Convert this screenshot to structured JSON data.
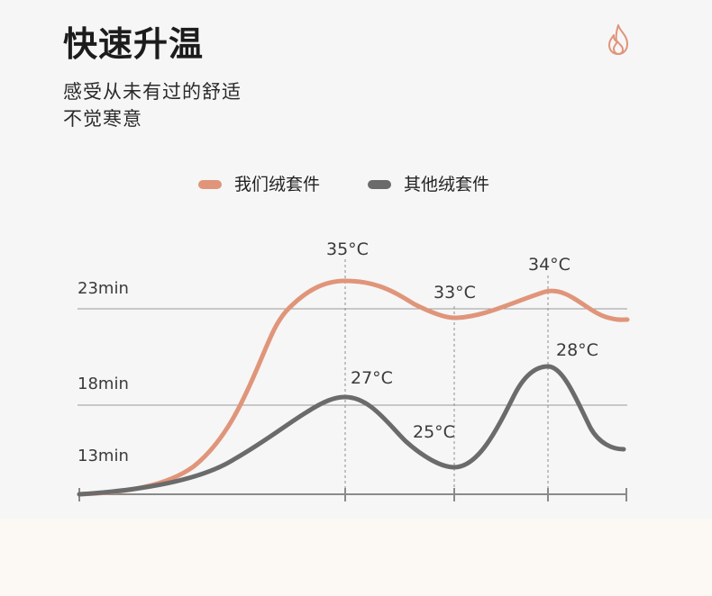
{
  "header": {
    "title": "快速升温",
    "subtitle_line1": "感受从未有过的舒适",
    "subtitle_line2": "不觉寒意",
    "icon": "flame-icon"
  },
  "legend": {
    "items": [
      {
        "label": "我们绒套件",
        "color": "#e0957a"
      },
      {
        "label": "其他绒套件",
        "color": "#6b6b6b"
      }
    ]
  },
  "colors": {
    "accent": "#e0957a",
    "secondary": "#6b6b6b",
    "grid": "#9a9a9a",
    "background": "#f6f6f6",
    "footer": "#fcf8f3"
  },
  "chart_data": {
    "type": "line",
    "title": "",
    "xlabel": "",
    "ylabel": "",
    "y_tick_labels": [
      "23min",
      "18min",
      "13min"
    ],
    "grid": "horizontal lines at 23min and 18min; dashed vertical guides at marked peaks and troughs",
    "series": [
      {
        "name": "我们绒套件",
        "color": "#e0957a",
        "annotations": [
          "35°C",
          "33°C",
          "34°C"
        ]
      },
      {
        "name": "其他绒套件",
        "color": "#6b6b6b",
        "annotations": [
          "27°C",
          "25°C",
          "28°C"
        ]
      }
    ]
  }
}
